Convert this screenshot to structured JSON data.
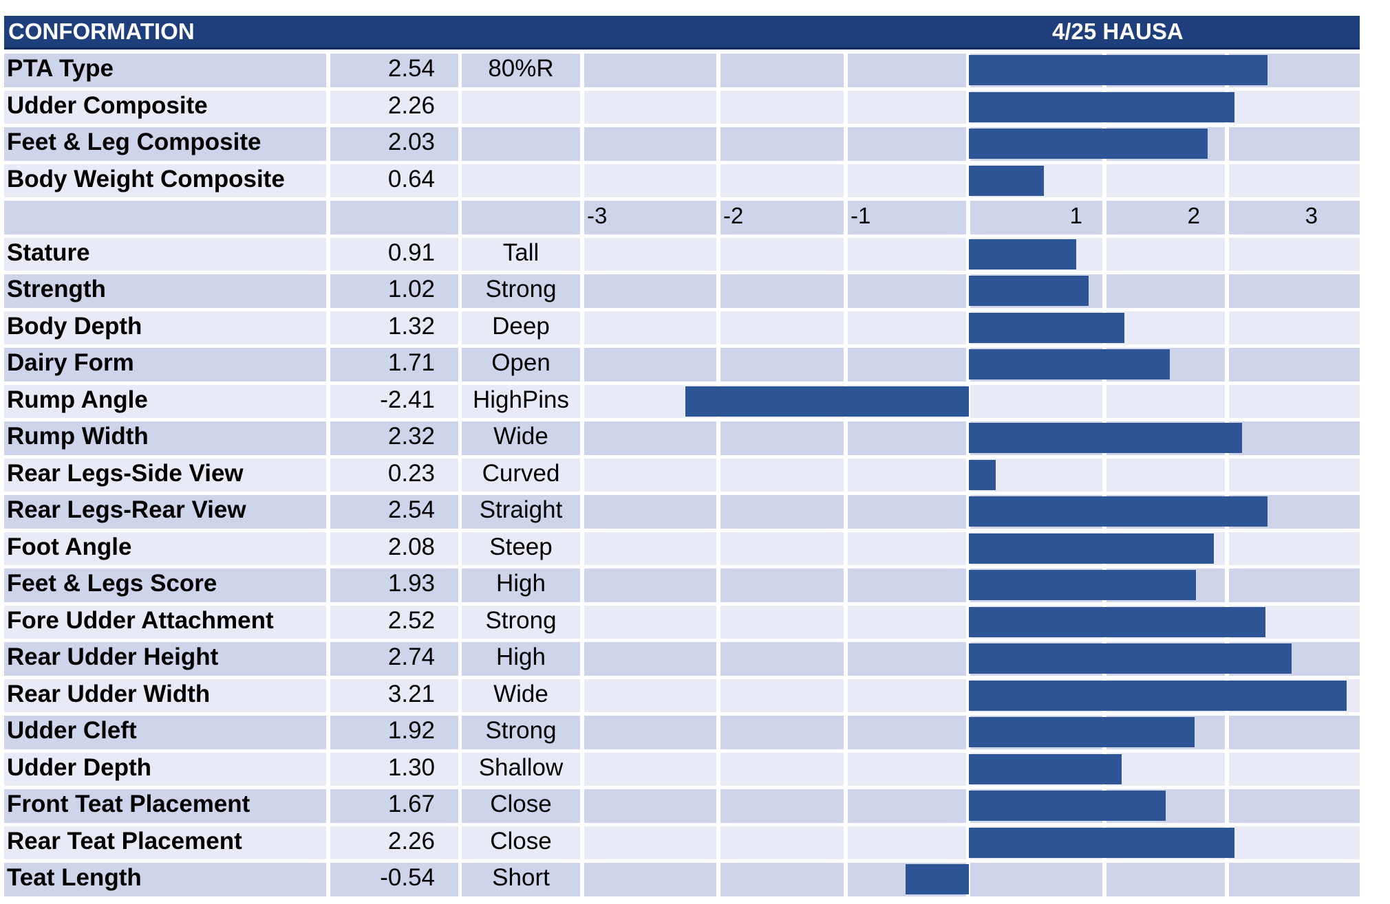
{
  "header": {
    "left_title": "CONFORMATION",
    "right_title": "4/25 HAUSA"
  },
  "colors": {
    "header_bg": "#1f3e7c",
    "bar": "#2d5596",
    "row_dark": "#ced4ea",
    "row_light": "#e8eaf5"
  },
  "chart_data": {
    "type": "bar",
    "orientation": "horizontal",
    "title": "4/25 HAUSA",
    "xlim": [
      -3,
      3.4
    ],
    "axis_ticks": [
      {
        "label": "-3",
        "value": -3
      },
      {
        "label": "-2",
        "value": -2
      },
      {
        "label": "-1",
        "value": -1
      },
      {
        "label": "1",
        "value": 1
      },
      {
        "label": "2",
        "value": 2
      },
      {
        "label": "3",
        "value": 3
      }
    ],
    "composites": [
      {
        "label": "PTA Type",
        "value": 2.54,
        "value_text": "2.54",
        "desc": "80%R"
      },
      {
        "label": "Udder Composite",
        "value": 2.26,
        "value_text": "2.26",
        "desc": ""
      },
      {
        "label": "Feet & Leg Composite",
        "value": 2.03,
        "value_text": "2.03",
        "desc": ""
      },
      {
        "label": "Body Weight Composite",
        "value": 0.64,
        "value_text": "0.64",
        "desc": ""
      }
    ],
    "traits": [
      {
        "label": "Stature",
        "value": 0.91,
        "value_text": "0.91",
        "desc": "Tall"
      },
      {
        "label": "Strength",
        "value": 1.02,
        "value_text": "1.02",
        "desc": "Strong"
      },
      {
        "label": "Body Depth",
        "value": 1.32,
        "value_text": "1.32",
        "desc": "Deep"
      },
      {
        "label": "Dairy Form",
        "value": 1.71,
        "value_text": "1.71",
        "desc": "Open"
      },
      {
        "label": "Rump Angle",
        "value": -2.41,
        "value_text": "-2.41",
        "desc": "HighPins"
      },
      {
        "label": "Rump Width",
        "value": 2.32,
        "value_text": "2.32",
        "desc": "Wide"
      },
      {
        "label": "Rear Legs-Side View",
        "value": 0.23,
        "value_text": "0.23",
        "desc": "Curved"
      },
      {
        "label": "Rear Legs-Rear View",
        "value": 2.54,
        "value_text": "2.54",
        "desc": "Straight"
      },
      {
        "label": "Foot Angle",
        "value": 2.08,
        "value_text": "2.08",
        "desc": "Steep"
      },
      {
        "label": "Feet & Legs Score",
        "value": 1.93,
        "value_text": "1.93",
        "desc": "High"
      },
      {
        "label": "Fore Udder Attachment",
        "value": 2.52,
        "value_text": "2.52",
        "desc": "Strong"
      },
      {
        "label": "Rear Udder Height",
        "value": 2.74,
        "value_text": "2.74",
        "desc": "High"
      },
      {
        "label": "Rear Udder Width",
        "value": 3.21,
        "value_text": "3.21",
        "desc": "Wide"
      },
      {
        "label": "Udder Cleft",
        "value": 1.92,
        "value_text": "1.92",
        "desc": "Strong"
      },
      {
        "label": "Udder Depth",
        "value": 1.3,
        "value_text": "1.30",
        "desc": "Shallow"
      },
      {
        "label": "Front Teat Placement",
        "value": 1.67,
        "value_text": "1.67",
        "desc": "Close"
      },
      {
        "label": "Rear Teat Placement",
        "value": 2.26,
        "value_text": "2.26",
        "desc": "Close"
      },
      {
        "label": "Teat Length",
        "value": -0.54,
        "value_text": "-0.54",
        "desc": "Short"
      }
    ]
  }
}
